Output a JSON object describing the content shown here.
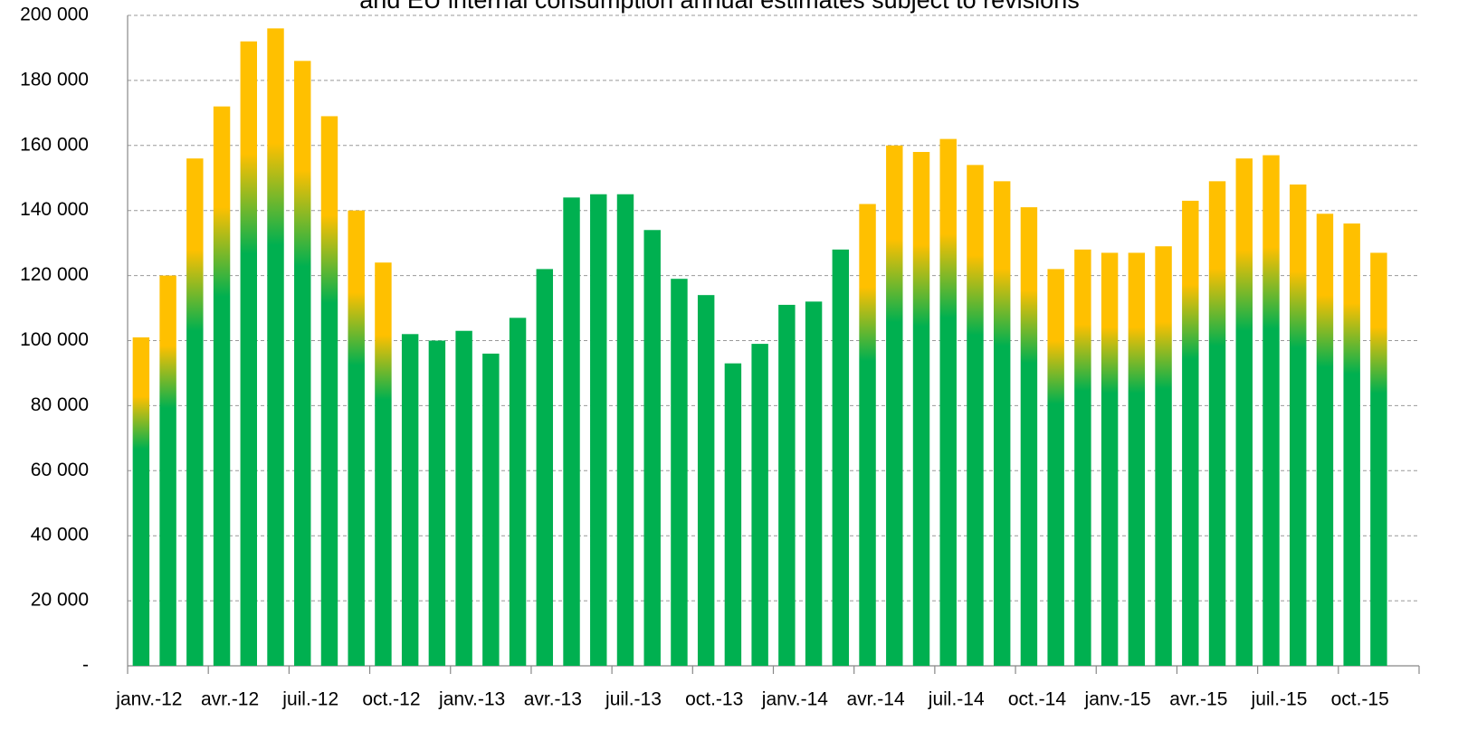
{
  "chart_data": {
    "type": "bar",
    "title": "and EU internal consumption annual estimates subject to revisions",
    "categories": [
      "janv.-12",
      null,
      null,
      "avr.-12",
      null,
      null,
      "juil.-12",
      null,
      null,
      "oct.-12",
      null,
      null,
      "janv.-13",
      null,
      null,
      "avr.-13",
      null,
      null,
      "juil.-13",
      null,
      null,
      "oct.-13",
      null,
      null,
      "janv.-14",
      null,
      null,
      "avr.-14",
      null,
      null,
      "juil.-14",
      null,
      null,
      "oct.-14",
      null,
      null,
      "janv.-15",
      null,
      null,
      "avr.-15",
      null,
      null,
      "juil.-15",
      null,
      null,
      "oct.-15",
      null,
      null
    ],
    "values": [
      101000,
      120000,
      156000,
      172000,
      192000,
      196000,
      186000,
      169000,
      140000,
      124000,
      102000,
      100000,
      103000,
      96000,
      107000,
      122000,
      144000,
      145000,
      145000,
      134000,
      119000,
      114000,
      93000,
      99000,
      111000,
      112000,
      128000,
      142000,
      160000,
      158000,
      162000,
      154000,
      149000,
      141000,
      122000,
      128000,
      127000,
      127000,
      129000,
      143000,
      149000,
      156000,
      157000,
      148000,
      139000,
      136000,
      127000,
      null
    ],
    "color": "#00b050",
    "top_colors": [
      "#ffc000",
      "#ffc000",
      "#ffc000",
      "#ffc000",
      "#ffc000",
      "#ffc000",
      "#ffc000",
      "#ffc000",
      "#ffc000",
      "#ffc000",
      "#00b050",
      "#00b050",
      "#00b050",
      "#00b050",
      "#00b050",
      "#00b050",
      "#00b050",
      "#00b050",
      "#00b050",
      "#00b050",
      "#00b050",
      "#00b050",
      "#00b050",
      "#00b050",
      "#00b050",
      "#00b050",
      "#00b050",
      "#ffc000",
      "#ffc000",
      "#ffc000",
      "#ffc000",
      "#ffc000",
      "#ffc000",
      "#ffc000",
      "#ffc000",
      "#ffc000",
      "#ffc000",
      "#ffc000",
      "#ffc000",
      "#ffc000",
      "#ffc000",
      "#ffc000",
      "#ffc000",
      "#ffc000",
      "#ffc000",
      "#ffc000",
      "#ffc000",
      "#ffc000"
    ],
    "ylim": [
      0,
      200000
    ],
    "yticks": [
      {
        "value": 0,
        "label": "-"
      },
      {
        "value": 20000,
        "label": "20 000"
      },
      {
        "value": 40000,
        "label": "40 000"
      },
      {
        "value": 60000,
        "label": "60 000"
      },
      {
        "value": 80000,
        "label": "80 000"
      },
      {
        "value": 100000,
        "label": "100 000"
      },
      {
        "value": 120000,
        "label": "120 000"
      },
      {
        "value": 140000,
        "label": "140 000"
      },
      {
        "value": 160000,
        "label": "160 000"
      },
      {
        "value": 180000,
        "label": "180 000"
      },
      {
        "value": 200000,
        "label": "200 000"
      }
    ],
    "grid": true
  }
}
